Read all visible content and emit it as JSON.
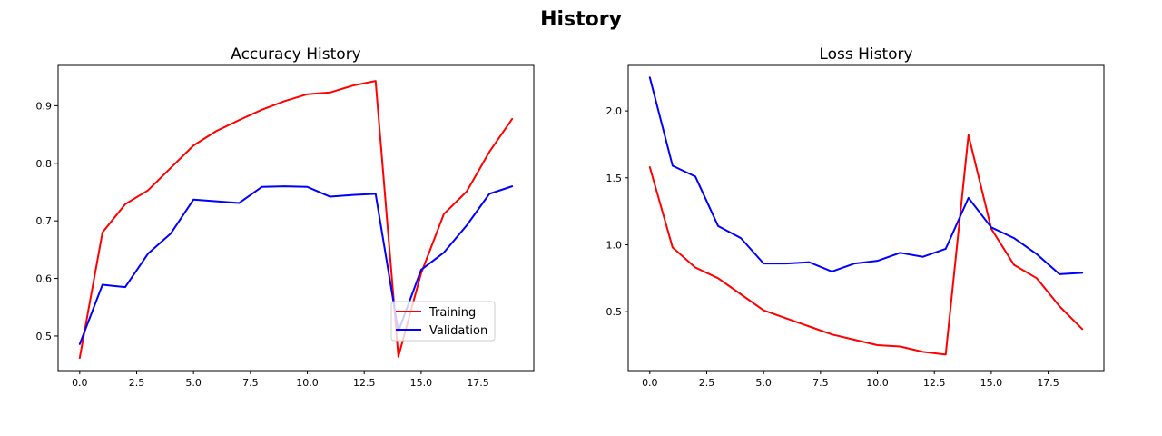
{
  "figure": {
    "title": "History"
  },
  "chart_data": [
    {
      "type": "line",
      "title": "Accuracy History",
      "xlabel": "",
      "ylabel": "",
      "xlim": [
        -0.95,
        19.95
      ],
      "ylim": [
        0.44,
        0.97
      ],
      "xticks": [
        0,
        2.5,
        5,
        7.5,
        10,
        12.5,
        15,
        17.5
      ],
      "xtick_labels": [
        "0.0",
        "2.5",
        "5.0",
        "7.5",
        "10.0",
        "12.5",
        "15.0",
        "17.5"
      ],
      "yticks": [
        0.5,
        0.6,
        0.7,
        0.8,
        0.9
      ],
      "ytick_labels": [
        "0.5",
        "0.6",
        "0.7",
        "0.8",
        "0.9"
      ],
      "grid": false,
      "legend": {
        "placement": "lower-right"
      },
      "x": [
        0,
        1,
        2,
        3,
        4,
        5,
        6,
        7,
        8,
        9,
        10,
        11,
        12,
        13,
        14,
        15,
        16,
        17,
        18,
        19
      ],
      "series": [
        {
          "name": "Training",
          "color": "#ff0000",
          "values": [
            0.462,
            0.68,
            0.729,
            0.753,
            0.792,
            0.831,
            0.856,
            0.875,
            0.893,
            0.908,
            0.92,
            0.923,
            0.935,
            0.943,
            0.464,
            0.609,
            0.712,
            0.751,
            0.82,
            0.877
          ]
        },
        {
          "name": "Validation",
          "color": "#0000ff",
          "values": [
            0.486,
            0.589,
            0.585,
            0.643,
            0.678,
            0.737,
            0.734,
            0.731,
            0.759,
            0.76,
            0.759,
            0.742,
            0.745,
            0.747,
            0.508,
            0.615,
            0.645,
            0.692,
            0.747,
            0.76
          ]
        }
      ]
    },
    {
      "type": "line",
      "title": "Loss History",
      "xlabel": "",
      "ylabel": "",
      "xlim": [
        -0.95,
        19.95
      ],
      "ylim": [
        0.06,
        2.34
      ],
      "xticks": [
        0,
        2.5,
        5,
        7.5,
        10,
        12.5,
        15,
        17.5
      ],
      "xtick_labels": [
        "0.0",
        "2.5",
        "5.0",
        "7.5",
        "10.0",
        "12.5",
        "15.0",
        "17.5"
      ],
      "yticks": [
        0.5,
        1.0,
        1.5,
        2.0
      ],
      "ytick_labels": [
        "0.5",
        "1.0",
        "1.5",
        "2.0"
      ],
      "grid": false,
      "legend": null,
      "x": [
        0,
        1,
        2,
        3,
        4,
        5,
        6,
        7,
        8,
        9,
        10,
        11,
        12,
        13,
        14,
        15,
        16,
        17,
        18,
        19
      ],
      "series": [
        {
          "color": "#ff0000",
          "values": [
            1.58,
            0.98,
            0.83,
            0.75,
            0.63,
            0.51,
            0.45,
            0.39,
            0.33,
            0.29,
            0.25,
            0.24,
            0.2,
            0.18,
            1.82,
            1.12,
            0.85,
            0.75,
            0.54,
            0.37
          ]
        },
        {
          "color": "#0000ff",
          "values": [
            2.25,
            1.59,
            1.51,
            1.14,
            1.05,
            0.86,
            0.86,
            0.87,
            0.8,
            0.86,
            0.88,
            0.94,
            0.91,
            0.97,
            1.35,
            1.13,
            1.05,
            0.93,
            0.78,
            0.79
          ]
        }
      ]
    }
  ]
}
